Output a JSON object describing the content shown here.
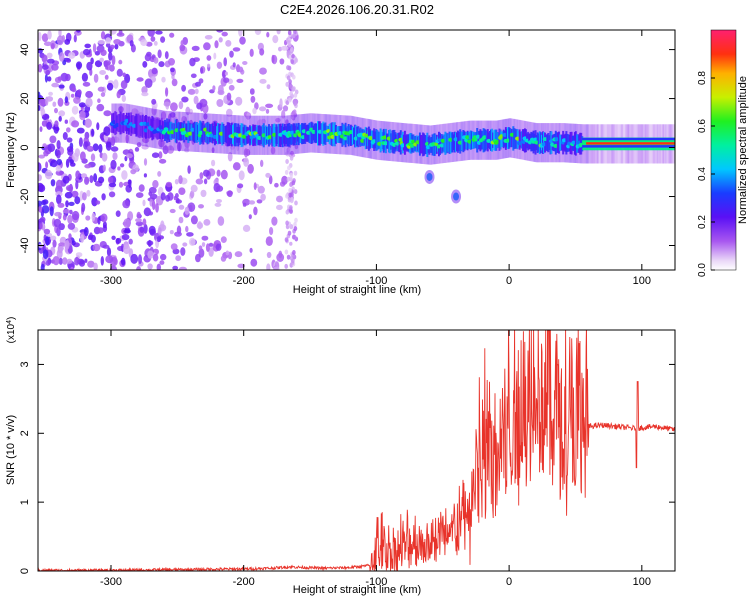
{
  "figure_title": "C2E4.2026.106.20.31.R02",
  "colorbar": {
    "label": "Normalized spectral amplitude",
    "ticks": [
      "0.0",
      "0.2",
      "0.4",
      "0.6",
      "0.8"
    ],
    "tick_values": [
      0.0,
      0.2,
      0.4,
      0.6,
      0.8
    ],
    "range": [
      0,
      1
    ]
  },
  "chart_data": [
    {
      "type": "heatmap",
      "title": "",
      "xlabel": "Height of straight line (km)",
      "ylabel": "Frequency (Hz)",
      "xlim": [
        -355,
        125
      ],
      "ylim": [
        -50,
        48
      ],
      "xticks": [
        -300,
        -200,
        -100,
        0,
        100
      ],
      "xtick_labels": [
        "-300",
        "-200",
        "-100",
        "0",
        "100"
      ],
      "yticks": [
        -40,
        -20,
        0,
        20,
        40
      ],
      "ytick_labels": [
        "-40",
        "-20",
        "0",
        "20",
        "40"
      ],
      "ridge_frequency": {
        "x": [
          -290,
          -260,
          -230,
          -200,
          -170,
          -150,
          -120,
          -100,
          -80,
          -60,
          -45,
          -30,
          -10,
          0,
          20,
          40,
          55,
          70,
          100,
          125
        ],
        "y": [
          10,
          7,
          6,
          5,
          5,
          6,
          5,
          3,
          2,
          1,
          2,
          3,
          3,
          4,
          2,
          2,
          1.5,
          1.5,
          1.5,
          1.5
        ]
      },
      "notable_features": [
        {
          "x": -60,
          "y": -12,
          "description": "spike"
        },
        {
          "x": -40,
          "y": -20,
          "description": "spike"
        }
      ],
      "noise_region_x": [
        -355,
        -160
      ],
      "max_amplitude_region_x": [
        20,
        125
      ]
    },
    {
      "type": "line",
      "title": "",
      "xlabel": "Height of straight line (km)",
      "ylabel": "SNR (10 * v/v)",
      "y_multiplier": "(x10^4)",
      "xlim": [
        -355,
        125
      ],
      "ylim": [
        0,
        3.5
      ],
      "xticks": [
        -300,
        -200,
        -100,
        0,
        100
      ],
      "xtick_labels": [
        "-300",
        "-200",
        "-100",
        "0",
        "100"
      ],
      "yticks": [
        0,
        1,
        2,
        3
      ],
      "ytick_labels": [
        "0",
        "1",
        "2",
        "3"
      ],
      "color": "#e8332a",
      "series": [
        {
          "x": [
            -355,
            -300,
            -250,
            -200,
            -180,
            -165,
            -140,
            -120,
            -105,
            -100,
            -90,
            -80,
            -70,
            -60,
            -50,
            -40,
            -30,
            -20,
            -10,
            0,
            10,
            20,
            30,
            40,
            50,
            60,
            70,
            80,
            90,
            95,
            100,
            110,
            125
          ],
          "y": [
            0.01,
            0.01,
            0.02,
            0.03,
            0.04,
            0.06,
            0.04,
            0.05,
            0.08,
            0.35,
            0.3,
            0.35,
            0.4,
            0.45,
            0.5,
            0.6,
            0.9,
            1.6,
            1.9,
            2.1,
            2.4,
            2.6,
            2.5,
            2.3,
            2.2,
            2.1,
            2.12,
            2.1,
            2.08,
            2.07,
            2.08,
            2.1,
            2.05
          ]
        }
      ]
    }
  ]
}
